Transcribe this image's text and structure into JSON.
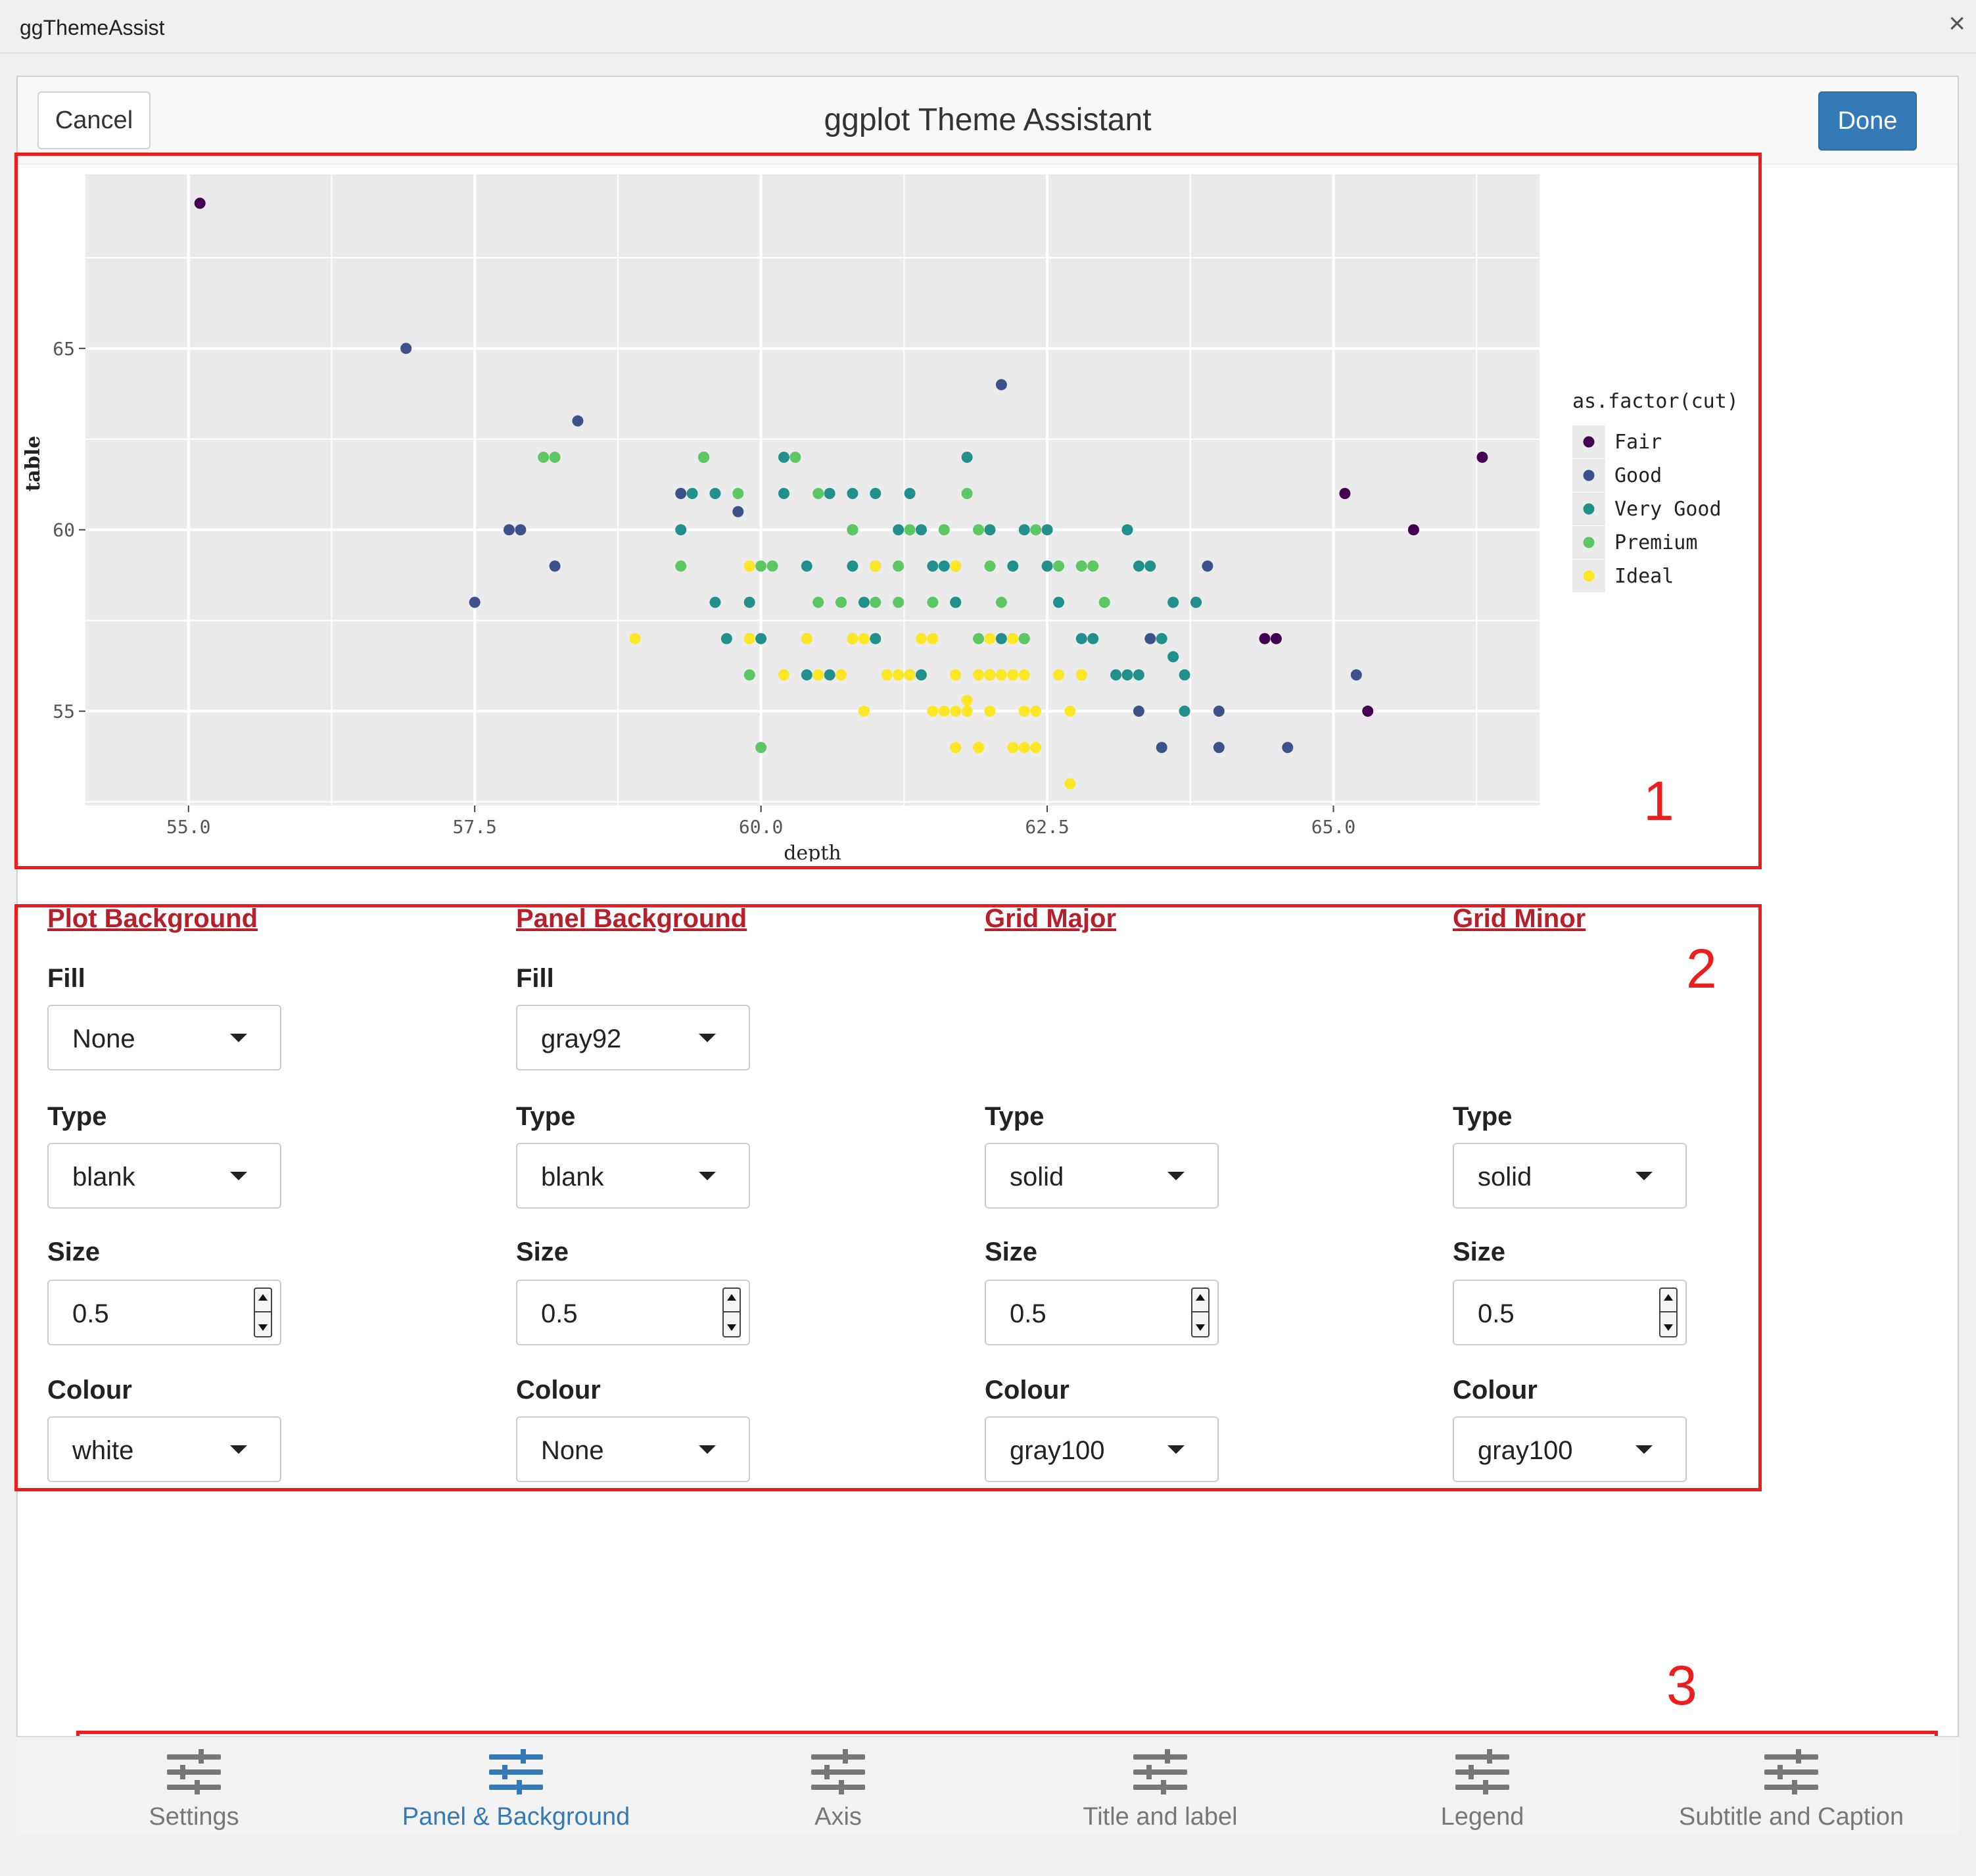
{
  "window": {
    "title": "ggThemeAssist",
    "close_glyph": "×"
  },
  "header": {
    "cancel_label": "Cancel",
    "title": "ggplot Theme Assistant",
    "done_label": "Done"
  },
  "annotations": [
    "1",
    "2",
    "3"
  ],
  "colors": {
    "accent": "#337ab7",
    "section_title": "#b5202a",
    "annotation": "#ee1c1c",
    "panel_bg": "#ebebeb"
  },
  "chart_data": {
    "type": "scatter",
    "xlabel": "depth",
    "ylabel": "table",
    "xlim": [
      54.1,
      66.8
    ],
    "ylim": [
      52.4,
      69.8
    ],
    "x_ticks": [
      "55.0",
      "57.5",
      "60.0",
      "62.5",
      "65.0"
    ],
    "x_tick_values": [
      55.0,
      57.5,
      60.0,
      62.5,
      65.0
    ],
    "y_ticks": [
      "55",
      "60",
      "65"
    ],
    "y_tick_values": [
      55,
      60,
      65
    ],
    "grid": true,
    "legend": {
      "title": "as.factor(cut)",
      "position": "right"
    },
    "series": [
      {
        "name": "Fair",
        "color": "#440154",
        "points": [
          [
            55.1,
            69
          ],
          [
            65.1,
            61
          ],
          [
            65.7,
            60
          ],
          [
            66.3,
            62
          ],
          [
            64.4,
            57
          ],
          [
            64.5,
            57
          ],
          [
            65.3,
            55
          ]
        ]
      },
      {
        "name": "Good",
        "color": "#3b528b",
        "points": [
          [
            56.9,
            65
          ],
          [
            57.5,
            58
          ],
          [
            57.8,
            60
          ],
          [
            57.9,
            60
          ],
          [
            58.2,
            59
          ],
          [
            58.4,
            63
          ],
          [
            59.3,
            61
          ],
          [
            59.5,
            62
          ],
          [
            59.8,
            60.5
          ],
          [
            62.1,
            64
          ],
          [
            63.9,
            59
          ],
          [
            63.8,
            58
          ],
          [
            64.6,
            54
          ],
          [
            64.0,
            55
          ],
          [
            63.3,
            55
          ],
          [
            63.5,
            54
          ],
          [
            65.2,
            56
          ],
          [
            63.4,
            57
          ],
          [
            64.0,
            54
          ]
        ]
      },
      {
        "name": "Very Good",
        "color": "#21908c",
        "points": [
          [
            59.3,
            60
          ],
          [
            59.4,
            61
          ],
          [
            59.6,
            61
          ],
          [
            59.6,
            58
          ],
          [
            59.7,
            57
          ],
          [
            60.0,
            57
          ],
          [
            59.9,
            58
          ],
          [
            60.2,
            61
          ],
          [
            60.2,
            62
          ],
          [
            60.4,
            56
          ],
          [
            60.6,
            56
          ],
          [
            60.4,
            59
          ],
          [
            60.6,
            61
          ],
          [
            60.8,
            61
          ],
          [
            60.8,
            60
          ],
          [
            60.7,
            58
          ],
          [
            61.0,
            61
          ],
          [
            60.8,
            59
          ],
          [
            61.2,
            60
          ],
          [
            61.4,
            60
          ],
          [
            61.3,
            61
          ],
          [
            61.5,
            59
          ],
          [
            61.6,
            59
          ],
          [
            61.8,
            62
          ],
          [
            62.0,
            60
          ],
          [
            61.7,
            58
          ],
          [
            62.1,
            57
          ],
          [
            62.2,
            59
          ],
          [
            62.5,
            59
          ],
          [
            62.3,
            57
          ],
          [
            62.5,
            60
          ],
          [
            62.6,
            58
          ],
          [
            62.8,
            57
          ],
          [
            62.9,
            57
          ],
          [
            63.1,
            56
          ],
          [
            63.2,
            56
          ],
          [
            63.3,
            59
          ],
          [
            63.2,
            60
          ],
          [
            63.3,
            56
          ],
          [
            63.6,
            58
          ],
          [
            63.7,
            55
          ],
          [
            63.8,
            58
          ],
          [
            63.6,
            56.5
          ],
          [
            63.5,
            57
          ],
          [
            61.0,
            57
          ],
          [
            60.9,
            58
          ],
          [
            61.4,
            56
          ],
          [
            61.7,
            58
          ],
          [
            62.3,
            60
          ],
          [
            62.0,
            56
          ],
          [
            63.4,
            59
          ],
          [
            63.7,
            56
          ]
        ]
      },
      {
        "name": "Premium",
        "color": "#5dc863",
        "points": [
          [
            58.1,
            62
          ],
          [
            58.2,
            62
          ],
          [
            59.3,
            59
          ],
          [
            59.5,
            62
          ],
          [
            59.8,
            61
          ],
          [
            59.9,
            56
          ],
          [
            60.0,
            54
          ],
          [
            60.1,
            59
          ],
          [
            60.3,
            62
          ],
          [
            60.5,
            61
          ],
          [
            60.5,
            58
          ],
          [
            60.7,
            58
          ],
          [
            60.8,
            60
          ],
          [
            61.0,
            58
          ],
          [
            61.2,
            58
          ],
          [
            61.2,
            59
          ],
          [
            61.3,
            60
          ],
          [
            61.6,
            60
          ],
          [
            61.7,
            59
          ],
          [
            61.8,
            61
          ],
          [
            61.9,
            60
          ],
          [
            62.0,
            59
          ],
          [
            61.9,
            57
          ],
          [
            62.3,
            57
          ],
          [
            62.4,
            60
          ],
          [
            62.6,
            59
          ],
          [
            62.8,
            59
          ],
          [
            62.9,
            59
          ],
          [
            63.0,
            58
          ],
          [
            62.8,
            56
          ],
          [
            60.8,
            57
          ],
          [
            61.0,
            59
          ],
          [
            61.5,
            58
          ],
          [
            61.3,
            56
          ],
          [
            62.1,
            58
          ],
          [
            60.0,
            59
          ]
        ]
      },
      {
        "name": "Ideal",
        "color": "#fde725",
        "points": [
          [
            58.9,
            57
          ],
          [
            59.9,
            59
          ],
          [
            59.9,
            57
          ],
          [
            60.4,
            57
          ],
          [
            60.5,
            56
          ],
          [
            60.7,
            56
          ],
          [
            60.8,
            57
          ],
          [
            60.9,
            57
          ],
          [
            60.9,
            55
          ],
          [
            61.0,
            59
          ],
          [
            61.1,
            56
          ],
          [
            61.2,
            56
          ],
          [
            61.3,
            56
          ],
          [
            61.4,
            57
          ],
          [
            61.5,
            57
          ],
          [
            61.5,
            55
          ],
          [
            61.6,
            55
          ],
          [
            61.7,
            56
          ],
          [
            61.7,
            55
          ],
          [
            61.8,
            55
          ],
          [
            61.9,
            56
          ],
          [
            61.9,
            54
          ],
          [
            62.0,
            56
          ],
          [
            62.0,
            55
          ],
          [
            62.1,
            56
          ],
          [
            62.2,
            56
          ],
          [
            62.3,
            56
          ],
          [
            62.3,
            55
          ],
          [
            62.4,
            55
          ],
          [
            61.8,
            55.3
          ],
          [
            61.7,
            59
          ],
          [
            62.2,
            54
          ],
          [
            62.3,
            54
          ],
          [
            62.4,
            54
          ],
          [
            62.7,
            55
          ],
          [
            62.7,
            53
          ],
          [
            62.6,
            56
          ],
          [
            62.8,
            56
          ],
          [
            62.0,
            57
          ],
          [
            62.2,
            57
          ],
          [
            61.9,
            54
          ],
          [
            61.7,
            54
          ],
          [
            60.2,
            56
          ]
        ]
      }
    ]
  },
  "columns": [
    {
      "title": "Plot Background",
      "fill": {
        "label": "Fill",
        "value": "None"
      },
      "type": {
        "label": "Type",
        "value": "blank"
      },
      "size": {
        "label": "Size",
        "value": "0.5"
      },
      "colour": {
        "label": "Colour",
        "value": "white"
      }
    },
    {
      "title": "Panel Background",
      "fill": {
        "label": "Fill",
        "value": "gray92"
      },
      "type": {
        "label": "Type",
        "value": "blank"
      },
      "size": {
        "label": "Size",
        "value": "0.5"
      },
      "colour": {
        "label": "Colour",
        "value": "None"
      }
    },
    {
      "title": "Grid Major",
      "type": {
        "label": "Type",
        "value": "solid"
      },
      "size": {
        "label": "Size",
        "value": "0.5"
      },
      "colour": {
        "label": "Colour",
        "value": "gray100"
      }
    },
    {
      "title": "Grid Minor",
      "type": {
        "label": "Type",
        "value": "solid"
      },
      "size": {
        "label": "Size",
        "value": "0.5"
      },
      "colour": {
        "label": "Colour",
        "value": "gray100"
      }
    }
  ],
  "tabs": [
    {
      "label": "Settings",
      "icon": "sliders-icon",
      "active": false
    },
    {
      "label": "Panel & Background",
      "icon": "sliders-icon",
      "active": true
    },
    {
      "label": "Axis",
      "icon": "sliders-icon",
      "active": false
    },
    {
      "label": "Title and label",
      "icon": "sliders-icon",
      "active": false
    },
    {
      "label": "Legend",
      "icon": "sliders-icon",
      "active": false
    },
    {
      "label": "Subtitle and Caption",
      "icon": "sliders-icon",
      "active": false
    }
  ]
}
